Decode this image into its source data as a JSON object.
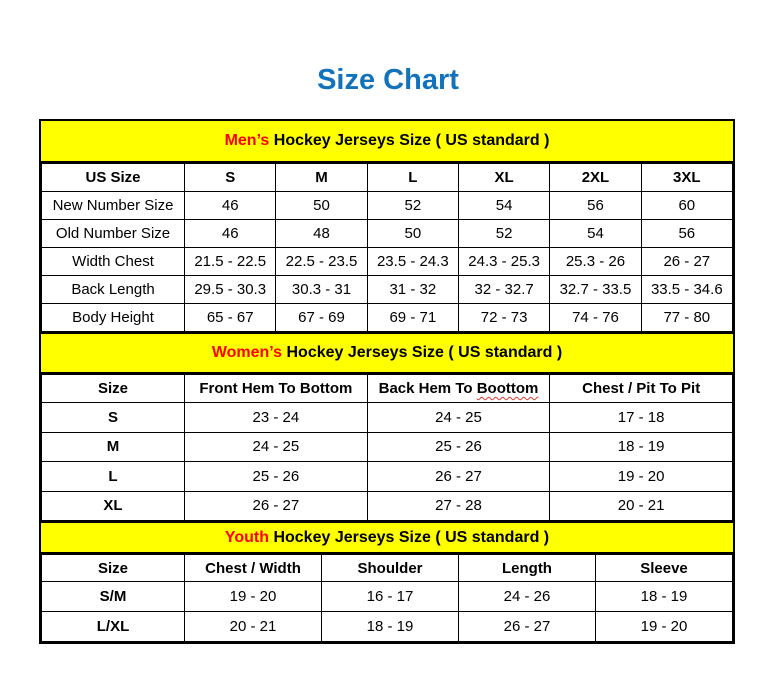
{
  "page": {
    "title": "Size Chart",
    "title_color": "#1272bb",
    "band_color": "#ffff00",
    "highlight_color": "#ff0000"
  },
  "sections": [
    {
      "id": "mens",
      "heading": {
        "highlight": "Men’s",
        "rest": " Hockey Jerseys Size ( US standard )"
      },
      "columns": [
        "US Size",
        "S",
        "M",
        "L",
        "XL",
        "2XL",
        "3XL"
      ],
      "rows": [
        {
          "label": "New Number Size",
          "values": [
            "46",
            "50",
            "52",
            "54",
            "56",
            "60"
          ]
        },
        {
          "label": "Old Number Size",
          "values": [
            "46",
            "48",
            "50",
            "52",
            "54",
            "56"
          ]
        },
        {
          "label": "Width Chest",
          "values": [
            "21.5 - 22.5",
            "22.5 - 23.5",
            "23.5 - 24.3",
            "24.3 - 25.3",
            "25.3 - 26",
            "26 - 27"
          ]
        },
        {
          "label": "Back Length",
          "values": [
            "29.5 - 30.3",
            "30.3 - 31",
            "31 - 32",
            "32 - 32.7",
            "32.7 - 33.5",
            "33.5 - 34.6"
          ]
        },
        {
          "label": "Body Height",
          "values": [
            "65 - 67",
            "67 - 69",
            "69 - 71",
            "72 - 73",
            "74 - 76",
            "77 - 80"
          ]
        }
      ]
    },
    {
      "id": "womens",
      "heading": {
        "highlight": "Women’s",
        "rest": " Hockey Jerseys Size ( US standard )"
      },
      "columns": [
        "Size",
        "Front Hem To Bottom",
        {
          "text": "Back Hem To ",
          "squiggle": "Boottom"
        },
        "Chest / Pit To Pit"
      ],
      "rows": [
        {
          "label": "S",
          "values": [
            "23 - 24",
            "24 - 25",
            "17 - 18"
          ]
        },
        {
          "label": "M",
          "values": [
            "24 - 25",
            "25 - 26",
            "18 - 19"
          ]
        },
        {
          "label": "L",
          "values": [
            "25 - 26",
            "26 - 27",
            "19 - 20"
          ]
        },
        {
          "label": "XL",
          "values": [
            "26 - 27",
            "27 - 28",
            "20 - 21"
          ]
        }
      ]
    },
    {
      "id": "youth",
      "heading": {
        "highlight": "Youth",
        "rest": " Hockey Jerseys Size ( US standard )"
      },
      "columns": [
        "Size",
        "Chest / Width",
        "Shoulder",
        "Length",
        "Sleeve"
      ],
      "rows": [
        {
          "label": "S/M",
          "values": [
            "19 - 20",
            "16 - 17",
            "24 - 26",
            "18 - 19"
          ]
        },
        {
          "label": "L/XL",
          "values": [
            "20 - 21",
            "18 - 19",
            "26 - 27",
            "19 - 20"
          ]
        }
      ]
    }
  ]
}
